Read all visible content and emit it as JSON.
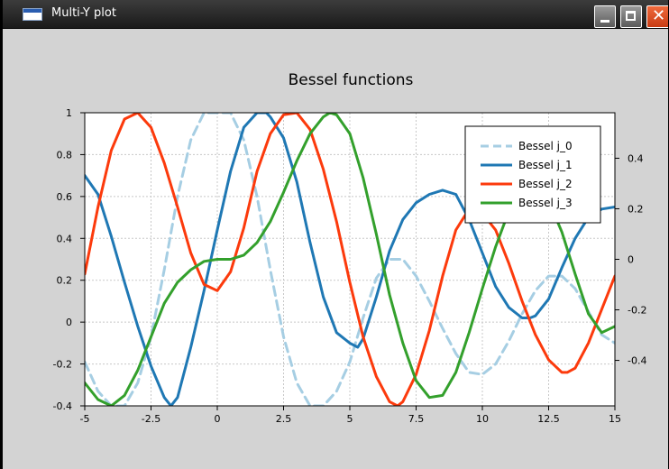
{
  "window": {
    "title": "Multi-Y plot"
  },
  "chart_data": {
    "type": "line",
    "title": "Bessel functions",
    "xlabel": "",
    "ylabel": "",
    "xlim": [
      -5,
      15
    ],
    "ylim": [
      -0.4,
      1
    ],
    "y2lim": [
      -0.58,
      0.58
    ],
    "x_ticks": [
      -5,
      -2.5,
      0,
      2.5,
      5,
      7.5,
      10,
      12.5,
      15
    ],
    "x_tick_labels": [
      "-5",
      "-2.5",
      "0",
      "2.5",
      "5",
      "7.5",
      "10",
      "12.5",
      "15"
    ],
    "y_ticks": [
      -0.4,
      -0.2,
      0,
      0.2,
      0.4,
      0.6,
      0.8,
      1
    ],
    "y_tick_labels": [
      "-0.4",
      "-0.2",
      "0",
      "0.2",
      "0.4",
      "0.6",
      "0.8",
      "1"
    ],
    "y2_ticks": [
      -0.4,
      -0.2,
      0,
      0.2,
      0.4
    ],
    "y2_tick_labels": [
      "-0.4",
      "-0.2",
      "0",
      "0.2",
      "0.4"
    ],
    "grid": true,
    "legend_position": "top-right",
    "series": [
      {
        "name": "Bessel j_0",
        "color": "#a6cee3",
        "dashed": true,
        "x": [
          -5,
          -4.5,
          -4,
          -3.5,
          -3,
          -2.5,
          -2,
          -1.5,
          -1,
          -0.5,
          0,
          0.5,
          1,
          1.5,
          2,
          2.5,
          3,
          3.5,
          4,
          4.5,
          5,
          5.5,
          6,
          6.5,
          7,
          7.5,
          8,
          8.5,
          9,
          9.5,
          10,
          10.5,
          11,
          11.5,
          12,
          12.5,
          13,
          13.5,
          14,
          14.5,
          15
        ],
        "y": [
          -0.19,
          -0.33,
          -0.4,
          -0.4,
          -0.29,
          -0.07,
          0.25,
          0.6,
          0.87,
          1.0,
          1.0,
          1.0,
          0.87,
          0.6,
          0.25,
          -0.07,
          -0.29,
          -0.4,
          -0.4,
          -0.33,
          -0.19,
          0.02,
          0.21,
          0.3,
          0.3,
          0.22,
          0.1,
          -0.03,
          -0.15,
          -0.24,
          -0.25,
          -0.2,
          -0.09,
          0.04,
          0.15,
          0.22,
          0.22,
          0.16,
          0.05,
          -0.06,
          -0.1
        ]
      },
      {
        "name": "Bessel j_1",
        "color": "#1f78b4",
        "dashed": false,
        "x": [
          -5,
          -4.5,
          -4,
          -3.5,
          -3,
          -2.5,
          -2,
          -1.75,
          -1.5,
          -1,
          -0.5,
          0,
          0.5,
          1,
          1.5,
          1.85,
          2,
          2.5,
          3,
          3.5,
          4,
          4.5,
          5,
          5.3,
          5.5,
          6,
          6.5,
          7,
          7.5,
          8,
          8.5,
          9,
          9.5,
          10,
          10.5,
          11,
          11.5,
          11.8,
          12,
          12.5,
          13,
          13.5,
          14,
          14.5,
          15
        ],
        "y": [
          0.7,
          0.61,
          0.41,
          0.19,
          -0.02,
          -0.21,
          -0.36,
          -0.4,
          -0.36,
          -0.12,
          0.15,
          0.44,
          0.72,
          0.93,
          1.0,
          1.0,
          0.98,
          0.88,
          0.67,
          0.38,
          0.12,
          -0.05,
          -0.1,
          -0.12,
          -0.08,
          0.12,
          0.34,
          0.49,
          0.57,
          0.61,
          0.63,
          0.61,
          0.49,
          0.33,
          0.17,
          0.07,
          0.02,
          0.02,
          0.03,
          0.11,
          0.26,
          0.4,
          0.5,
          0.54,
          0.55
        ]
      },
      {
        "name": "Bessel j_2",
        "color": "#fc3a0c",
        "dashed": false,
        "x": [
          -5,
          -4.5,
          -4,
          -3.5,
          -3,
          -2.5,
          -2,
          -1.5,
          -1,
          -0.5,
          0,
          0.5,
          1,
          1.5,
          2,
          2.5,
          3,
          3.5,
          4,
          4.5,
          5,
          5.5,
          6,
          6.5,
          6.8,
          7,
          7.5,
          8,
          8.5,
          9,
          9.5,
          10,
          10.5,
          11,
          11.5,
          12,
          12.5,
          13,
          13.2,
          13.5,
          14,
          14.5,
          15
        ],
        "y": [
          0.23,
          0.55,
          0.82,
          0.97,
          1.0,
          0.93,
          0.76,
          0.55,
          0.33,
          0.18,
          0.15,
          0.24,
          0.45,
          0.72,
          0.9,
          0.99,
          1.0,
          0.92,
          0.73,
          0.48,
          0.19,
          -0.07,
          -0.26,
          -0.38,
          -0.4,
          -0.38,
          -0.25,
          -0.04,
          0.22,
          0.44,
          0.54,
          0.52,
          0.44,
          0.28,
          0.1,
          -0.06,
          -0.18,
          -0.24,
          -0.24,
          -0.22,
          -0.1,
          0.06,
          0.22
        ]
      },
      {
        "name": "Bessel j_3",
        "color": "#33a02c",
        "dashed": false,
        "x": [
          -5,
          -4.5,
          -4,
          -3.5,
          -3,
          -2.5,
          -2,
          -1.5,
          -1,
          -0.5,
          0,
          0.5,
          1,
          1.5,
          2,
          2.5,
          3,
          3.5,
          4,
          4.25,
          4.5,
          5,
          5.5,
          6,
          6.5,
          7,
          7.5,
          8,
          8.5,
          9,
          9.5,
          10,
          10.5,
          11,
          11.5,
          12,
          12.5,
          13,
          13.5,
          14,
          14.5,
          15
        ],
        "y": [
          -0.29,
          -0.37,
          -0.4,
          -0.35,
          -0.23,
          -0.07,
          0.09,
          0.19,
          0.25,
          0.29,
          0.3,
          0.3,
          0.32,
          0.38,
          0.48,
          0.62,
          0.77,
          0.9,
          0.98,
          1.0,
          0.99,
          0.9,
          0.69,
          0.42,
          0.13,
          -0.1,
          -0.28,
          -0.36,
          -0.35,
          -0.24,
          -0.05,
          0.16,
          0.36,
          0.53,
          0.63,
          0.65,
          0.58,
          0.43,
          0.23,
          0.04,
          -0.05,
          -0.02
        ]
      }
    ]
  }
}
